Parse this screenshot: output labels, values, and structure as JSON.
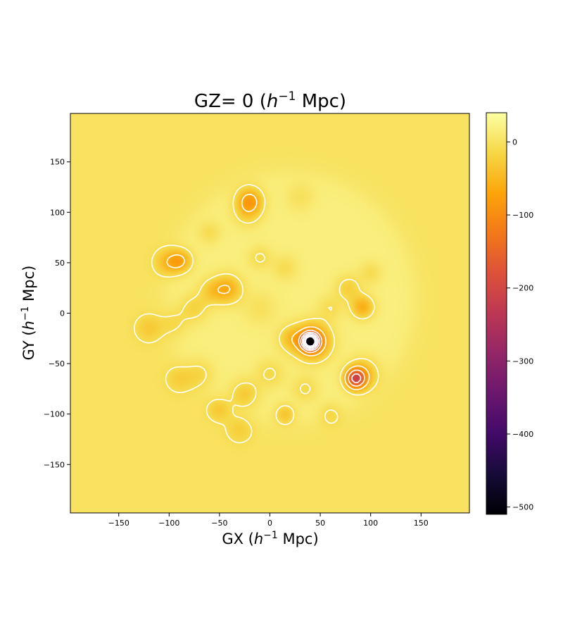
{
  "chart_data": {
    "type": "heatmap",
    "title": "GZ= 0 (h⁻¹ Mpc)",
    "title_parts": {
      "prefix": "GZ= 0 (",
      "h": "h",
      "exp": "−1",
      "suffix": " Mpc)"
    },
    "xlabel_parts": {
      "prefix": "GX (",
      "h": "h",
      "exp": "−1",
      "suffix": " Mpc)"
    },
    "ylabel_parts": {
      "prefix": "GY (",
      "h": "h",
      "exp": "−1",
      "suffix": " Mpc)"
    },
    "xlim": [
      -198,
      198
    ],
    "ylim": [
      -198,
      198
    ],
    "x_ticks": [
      -150,
      -100,
      -50,
      0,
      50,
      100,
      150
    ],
    "y_ticks": [
      -150,
      -100,
      -50,
      0,
      50,
      100,
      150
    ],
    "x_tick_labels": [
      "−150",
      "−100",
      "−50",
      "0",
      "50",
      "100",
      "150"
    ],
    "y_tick_labels": [
      "−150",
      "−100",
      "−50",
      "0",
      "50",
      "100",
      "150"
    ],
    "colorbar": {
      "colormap": "inferno",
      "range": [
        -510,
        40
      ],
      "ticks": [
        0,
        -100,
        -200,
        -300,
        -400,
        -500
      ],
      "tick_labels": [
        "0",
        "−100",
        "−200",
        "−300",
        "−400",
        "−500"
      ]
    },
    "background_value": 0,
    "survey_region": {
      "center": [
        20,
        15
      ],
      "radius": 125,
      "value": 18
    },
    "blobs": [
      {
        "x": -20,
        "y": 112,
        "value": -85,
        "sigma": 9
      },
      {
        "x": -22,
        "y": 100,
        "value": -40,
        "sigma": 10
      },
      {
        "x": -100,
        "y": 50,
        "value": -55,
        "sigma": 9
      },
      {
        "x": -88,
        "y": 52,
        "value": -70,
        "sigma": 8
      },
      {
        "x": -42,
        "y": 24,
        "value": -75,
        "sigma": 10
      },
      {
        "x": -58,
        "y": 22,
        "value": -40,
        "sigma": 9
      },
      {
        "x": -75,
        "y": 5,
        "value": -35,
        "sigma": 10
      },
      {
        "x": -120,
        "y": -15,
        "value": -30,
        "sigma": 9
      },
      {
        "x": -95,
        "y": -10,
        "value": -25,
        "sigma": 10
      },
      {
        "x": -10,
        "y": 55,
        "value": -30,
        "sigma": 8
      },
      {
        "x": 15,
        "y": 45,
        "value": -25,
        "sigma": 9
      },
      {
        "x": 40,
        "y": -28,
        "value": -480,
        "sigma": 5
      },
      {
        "x": 42,
        "y": -28,
        "value": -140,
        "sigma": 12
      },
      {
        "x": 20,
        "y": -25,
        "value": -45,
        "sigma": 9
      },
      {
        "x": 85,
        "y": -65,
        "value": -190,
        "sigma": 7
      },
      {
        "x": 92,
        "y": -60,
        "value": -60,
        "sigma": 11
      },
      {
        "x": 92,
        "y": 6,
        "value": -75,
        "sigma": 8
      },
      {
        "x": 78,
        "y": 25,
        "value": -40,
        "sigma": 9
      },
      {
        "x": 100,
        "y": 40,
        "value": -25,
        "sigma": 8
      },
      {
        "x": 15,
        "y": -100,
        "value": -50,
        "sigma": 7
      },
      {
        "x": -25,
        "y": -80,
        "value": -45,
        "sigma": 10
      },
      {
        "x": -50,
        "y": -95,
        "value": -35,
        "sigma": 8
      },
      {
        "x": -70,
        "y": -60,
        "value": -30,
        "sigma": 10
      },
      {
        "x": -90,
        "y": -65,
        "value": -25,
        "sigma": 9
      },
      {
        "x": 0,
        "y": -60,
        "value": -30,
        "sigma": 10
      },
      {
        "x": 35,
        "y": -75,
        "value": -30,
        "sigma": 9
      },
      {
        "x": 60,
        "y": -100,
        "value": -25,
        "sigma": 8
      },
      {
        "x": -30,
        "y": -115,
        "value": -25,
        "sigma": 9
      },
      {
        "x": 30,
        "y": 115,
        "value": -20,
        "sigma": 10
      },
      {
        "x": 60,
        "y": 5,
        "value": -25,
        "sigma": 9
      },
      {
        "x": -10,
        "y": 5,
        "value": -20,
        "sigma": 12
      },
      {
        "x": -60,
        "y": 80,
        "value": -25,
        "sigma": 8
      }
    ],
    "contours": {
      "color": "#ffffff",
      "solid_levels": [
        -8
      ],
      "dashed_levels": [
        -60,
        -120,
        -180,
        -240,
        -300,
        -360,
        -420
      ]
    }
  }
}
